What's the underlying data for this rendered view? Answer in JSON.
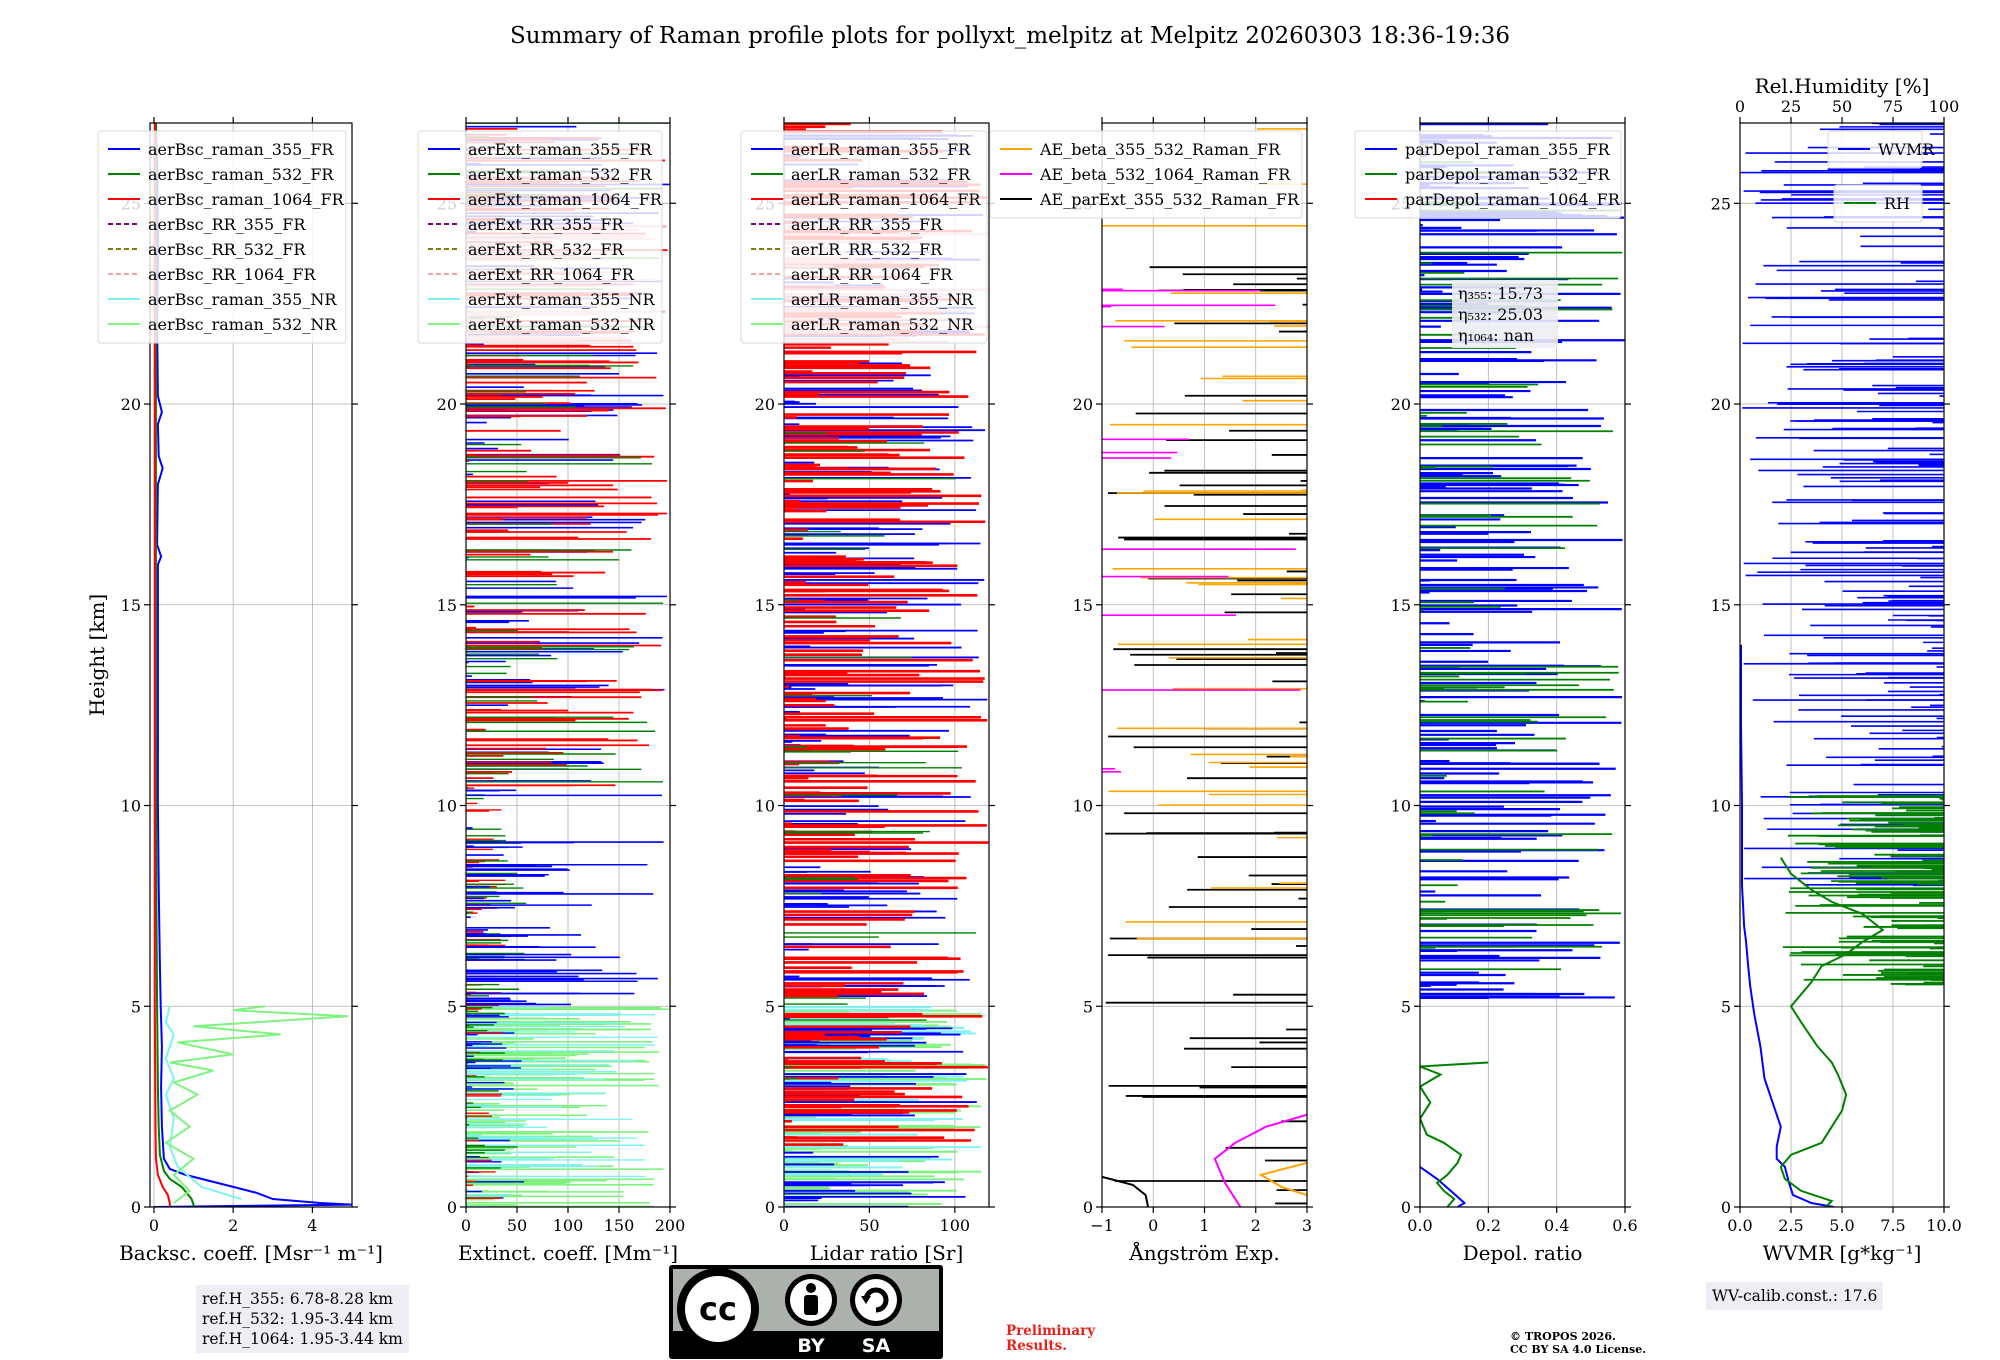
{
  "title": "Summary of Raman profile plots for pollyxt_melpitz at Melpitz 20260303 18:36-19:36",
  "colors": {
    "blue": "#0000ff",
    "green": "#008000",
    "red": "#ff0000",
    "purple": "#800080",
    "olive": "#808000",
    "pink": "#f4a6a6",
    "cyan": "#7ff3f3",
    "lightgreen": "#7ff27f",
    "orange": "#ffa500",
    "magenta": "#ff00ff",
    "black": "#000000"
  },
  "y_axis": {
    "label": "Height [km]",
    "ylim": [
      0,
      27
    ],
    "ticks": [
      0,
      5,
      10,
      15,
      20,
      25
    ]
  },
  "chart_data": [
    {
      "id": "backscatter",
      "type": "line",
      "xlabel": "Backsc. coeff. [Msr⁻¹ m⁻¹]",
      "xlim": [
        -0.1,
        5
      ],
      "xticks": [
        0,
        2,
        4
      ],
      "xtick_labels": [
        "0",
        "2",
        "4"
      ],
      "legend_loc": "upper-left",
      "series": [
        {
          "name": "aerBsc_raman_355_FR",
          "color": "#0000ff",
          "dash": "solid",
          "points": [
            [
              0,
              0
            ],
            [
              5,
              0.06
            ],
            [
              4.2,
              0.1
            ],
            [
              3.0,
              0.2
            ],
            [
              2.6,
              0.35
            ],
            [
              2.0,
              0.5
            ],
            [
              1.4,
              0.65
            ],
            [
              0.8,
              0.8
            ],
            [
              0.4,
              0.95
            ],
            [
              0.25,
              1.2
            ],
            [
              0.2,
              2.0
            ],
            [
              0.18,
              3.0
            ],
            [
              0.2,
              4.0
            ],
            [
              0.17,
              5.0
            ],
            [
              0.15,
              6.0
            ],
            [
              0.12,
              8.0
            ],
            [
              0.1,
              10.0
            ],
            [
              0.1,
              12.0
            ],
            [
              0.1,
              14.0
            ],
            [
              0.1,
              16.0
            ],
            [
              0.18,
              16.2
            ],
            [
              0.08,
              16.5
            ],
            [
              0.1,
              18.0
            ],
            [
              0.22,
              18.4
            ],
            [
              0.12,
              18.7
            ],
            [
              0.1,
              19.5
            ],
            [
              0.2,
              19.8
            ],
            [
              0.1,
              20.2
            ],
            [
              0.08,
              22.0
            ],
            [
              0.1,
              24.0
            ],
            [
              0.08,
              26.0
            ],
            [
              0.05,
              27
            ]
          ]
        },
        {
          "name": "aerBsc_raman_532_FR",
          "color": "#008000",
          "dash": "solid",
          "points": [
            [
              1.0,
              0
            ],
            [
              1.0,
              0.05
            ],
            [
              0.95,
              0.2
            ],
            [
              0.7,
              0.5
            ],
            [
              0.4,
              0.7
            ],
            [
              0.25,
              0.9
            ],
            [
              0.15,
              1.3
            ],
            [
              0.12,
              2.0
            ],
            [
              0.1,
              3.0
            ],
            [
              0.08,
              5.0
            ],
            [
              0.06,
              8.0
            ],
            [
              0.05,
              12.0
            ],
            [
              0.05,
              27
            ]
          ]
        },
        {
          "name": "aerBsc_raman_1064_FR",
          "color": "#ff0000",
          "dash": "solid",
          "points": [
            [
              0.4,
              0
            ],
            [
              0.4,
              0.1
            ],
            [
              0.35,
              0.3
            ],
            [
              0.22,
              0.5
            ],
            [
              0.1,
              0.8
            ],
            [
              0.05,
              1.2
            ],
            [
              0.04,
              2.0
            ],
            [
              0.02,
              5.0
            ],
            [
              0.02,
              27
            ]
          ]
        },
        {
          "name": "aerBsc_RR_355_FR",
          "color": "#800080",
          "dash": "dashed",
          "points": []
        },
        {
          "name": "aerBsc_RR_532_FR",
          "color": "#808000",
          "dash": "dashed",
          "points": []
        },
        {
          "name": "aerBsc_RR_1064_FR",
          "color": "#f4a6a6",
          "dash": "dashed",
          "points": []
        },
        {
          "name": "aerBsc_raman_355_NR",
          "color": "#7ff3f3",
          "dash": "solid",
          "points": [
            [
              2.2,
              0.2
            ],
            [
              1.2,
              0.5
            ],
            [
              0.6,
              1.0
            ],
            [
              0.4,
              1.5
            ],
            [
              0.5,
              2.2
            ],
            [
              0.3,
              2.8
            ],
            [
              0.5,
              3.2
            ],
            [
              0.3,
              3.7
            ],
            [
              0.5,
              4.3
            ],
            [
              0.3,
              4.6
            ],
            [
              0.4,
              5.0
            ]
          ]
        },
        {
          "name": "aerBsc_raman_532_NR",
          "color": "#7ff27f",
          "dash": "solid",
          "points": [
            [
              0.5,
              0.1
            ],
            [
              0.9,
              0.4
            ],
            [
              0.5,
              0.8
            ],
            [
              1.0,
              1.2
            ],
            [
              0.3,
              1.6
            ],
            [
              0.9,
              2.0
            ],
            [
              0.4,
              2.4
            ],
            [
              1.1,
              2.8
            ],
            [
              0.5,
              3.1
            ],
            [
              1.5,
              3.4
            ],
            [
              0.4,
              3.6
            ],
            [
              2.0,
              3.8
            ],
            [
              0.6,
              4.1
            ],
            [
              3.2,
              4.3
            ],
            [
              1.0,
              4.5
            ],
            [
              4.9,
              4.75
            ],
            [
              2.0,
              4.9
            ],
            [
              2.8,
              5.0
            ]
          ]
        }
      ]
    },
    {
      "id": "extinction",
      "type": "line",
      "xlabel": "Extinct. coeff. [Mm⁻¹]",
      "xlim": [
        0,
        200
      ],
      "xticks": [
        0,
        50,
        100,
        150,
        200
      ],
      "xtick_labels": [
        "0",
        "50",
        "100",
        "150",
        "200"
      ],
      "legend_loc": "upper-left",
      "series": [
        {
          "name": "aerExt_raman_355_FR",
          "color": "#0000ff",
          "dash": "solid",
          "points": []
        },
        {
          "name": "aerExt_raman_532_FR",
          "color": "#008000",
          "dash": "solid",
          "points": []
        },
        {
          "name": "aerExt_raman_1064_FR",
          "color": "#ff0000",
          "dash": "solid",
          "points": []
        },
        {
          "name": "aerExt_RR_355_FR",
          "color": "#800080",
          "dash": "dashed",
          "points": []
        },
        {
          "name": "aerExt_RR_532_FR",
          "color": "#808000",
          "dash": "dashed",
          "points": []
        },
        {
          "name": "aerExt_RR_1064_FR",
          "color": "#f4a6a6",
          "dash": "dashed",
          "points": []
        },
        {
          "name": "aerExt_raman_355_NR",
          "color": "#7ff3f3",
          "dash": "solid",
          "points": []
        },
        {
          "name": "aerExt_raman_532_NR",
          "color": "#7ff27f",
          "dash": "solid",
          "points": []
        }
      ]
    },
    {
      "id": "lidar_ratio",
      "type": "line",
      "xlabel": "Lidar ratio [Sr]",
      "xlim": [
        0,
        120
      ],
      "xticks": [
        0,
        50,
        100
      ],
      "xtick_labels": [
        "0",
        "50",
        "100"
      ],
      "legend_loc": "upper-left",
      "series": [
        {
          "name": "aerLR_raman_355_FR",
          "color": "#0000ff",
          "dash": "solid",
          "points": []
        },
        {
          "name": "aerLR_raman_532_FR",
          "color": "#008000",
          "dash": "solid",
          "points": []
        },
        {
          "name": "aerLR_raman_1064_FR",
          "color": "#ff0000",
          "dash": "solid",
          "points": []
        },
        {
          "name": "aerLR_RR_355_FR",
          "color": "#800080",
          "dash": "dashed",
          "points": []
        },
        {
          "name": "aerLR_RR_532_FR",
          "color": "#808000",
          "dash": "dashed",
          "points": []
        },
        {
          "name": "aerLR_RR_1064_FR",
          "color": "#f4a6a6",
          "dash": "dashed",
          "points": []
        },
        {
          "name": "aerLR_raman_355_NR",
          "color": "#7ff3f3",
          "dash": "solid",
          "points": []
        },
        {
          "name": "aerLR_raman_532_NR",
          "color": "#7ff27f",
          "dash": "solid",
          "points": []
        }
      ]
    },
    {
      "id": "angstrom",
      "type": "line",
      "xlabel": "Ångström Exp.",
      "xlim": [
        -1,
        3
      ],
      "xticks": [
        -1,
        0,
        1,
        2,
        3
      ],
      "xtick_labels": [
        "−1",
        "0",
        "1",
        "2",
        "3"
      ],
      "legend_loc": "upper-left",
      "series": [
        {
          "name": "AE_beta_355_532_Raman_FR",
          "color": "#ffa500",
          "dash": "solid",
          "points": [
            [
              3.0,
              0.3
            ],
            [
              2.5,
              0.5
            ],
            [
              2.1,
              0.8
            ],
            [
              2.7,
              1.0
            ],
            [
              3.0,
              1.1
            ]
          ]
        },
        {
          "name": "AE_beta_532_1064_Raman_FR",
          "color": "#ff00ff",
          "dash": "solid",
          "points": [
            [
              1.7,
              0.0
            ],
            [
              1.4,
              0.6
            ],
            [
              1.2,
              1.2
            ],
            [
              1.6,
              1.6
            ],
            [
              2.2,
              2.0
            ],
            [
              3.0,
              2.3
            ]
          ]
        },
        {
          "name": "AE_parExt_355_532_Raman_FR",
          "color": "#000000",
          "dash": "solid",
          "points": [
            [
              -1.0,
              0.75
            ],
            [
              -0.4,
              0.55
            ],
            [
              -0.15,
              0.3
            ],
            [
              -0.1,
              0.0
            ]
          ]
        }
      ]
    },
    {
      "id": "depol",
      "type": "line",
      "xlabel": "Depol. ratio",
      "xlim": [
        0,
        0.6
      ],
      "xticks": [
        0,
        0.2,
        0.4,
        0.6
      ],
      "xtick_labels": [
        "0.0",
        "0.2",
        "0.4",
        "0.6"
      ],
      "legend_loc": "upper-left",
      "series": [
        {
          "name": "parDepol_raman_355_FR",
          "color": "#0000ff",
          "dash": "solid",
          "points": [
            [
              0.0,
              1.0
            ],
            [
              0.05,
              0.7
            ],
            [
              0.09,
              0.4
            ],
            [
              0.13,
              0.1
            ],
            [
              0.11,
              0.0
            ]
          ]
        },
        {
          "name": "parDepol_raman_532_FR",
          "color": "#008000",
          "dash": "solid",
          "points": [
            [
              0.08,
              0.0
            ],
            [
              0.1,
              0.2
            ],
            [
              0.07,
              0.4
            ],
            [
              0.05,
              0.6
            ],
            [
              0.08,
              0.8
            ],
            [
              0.11,
              1.1
            ],
            [
              0.12,
              1.3
            ],
            [
              0.07,
              1.6
            ],
            [
              0.02,
              1.8
            ],
            [
              0.0,
              2.2
            ],
            [
              0.03,
              2.6
            ],
            [
              0.0,
              3.0
            ],
            [
              0.06,
              3.3
            ],
            [
              0.0,
              3.5
            ],
            [
              0.2,
              3.6
            ]
          ]
        },
        {
          "name": "parDepol_raman_1064_FR",
          "color": "#ff0000",
          "dash": "solid",
          "points": []
        }
      ],
      "annotations": {
        "eta355": "η₃₅₅: 15.73",
        "eta532": "η₅₃₂: 25.03",
        "eta1064": "η₁₀₆₄: nan"
      }
    },
    {
      "id": "wvmr",
      "type": "line",
      "xlabel": "WVMR [g*kg⁻¹]",
      "xlim": [
        0,
        10
      ],
      "xticks": [
        0,
        2.5,
        5,
        7.5,
        10
      ],
      "xtick_labels": [
        "0.0",
        "2.5",
        "5.0",
        "7.5",
        "10.0"
      ],
      "top_axis": {
        "label": "Rel.Humidity [%]",
        "xlim": [
          0,
          100
        ],
        "ticks": [
          0,
          25,
          50,
          75,
          100
        ],
        "tick_labels": [
          "0",
          "25",
          "50",
          "75",
          "100"
        ]
      },
      "series": [
        {
          "name": "WVMR",
          "color": "#0000ff",
          "dash": "solid",
          "axis": "bottom",
          "points": [
            [
              4.6,
              0.0
            ],
            [
              3.5,
              0.1
            ],
            [
              2.6,
              0.3
            ],
            [
              2.4,
              0.6
            ],
            [
              2.2,
              1.0
            ],
            [
              1.8,
              1.2
            ],
            [
              1.8,
              1.5
            ],
            [
              2.0,
              2.0
            ],
            [
              1.6,
              2.6
            ],
            [
              1.2,
              3.2
            ],
            [
              1.0,
              4.0
            ],
            [
              0.7,
              4.8
            ],
            [
              0.5,
              5.5
            ],
            [
              0.4,
              6.0
            ],
            [
              0.3,
              6.6
            ],
            [
              0.2,
              7.0
            ],
            [
              0.15,
              7.5
            ],
            [
              0.1,
              8.0
            ],
            [
              0.1,
              10.0
            ],
            [
              0.05,
              12.0
            ],
            [
              0.05,
              14.0
            ]
          ]
        },
        {
          "name": "RH",
          "color": "#008000",
          "dash": "solid",
          "axis": "top",
          "points": [
            [
              42,
              0.0
            ],
            [
              45,
              0.15
            ],
            [
              30,
              0.4
            ],
            [
              22,
              0.7
            ],
            [
              20,
              1.0
            ],
            [
              25,
              1.3
            ],
            [
              40,
              1.6
            ],
            [
              45,
              2.0
            ],
            [
              50,
              2.4
            ],
            [
              52,
              2.8
            ],
            [
              48,
              3.3
            ],
            [
              45,
              3.6
            ],
            [
              38,
              4.0
            ],
            [
              30,
              4.6
            ],
            [
              25,
              5.0
            ],
            [
              35,
              5.6
            ],
            [
              40,
              6.0
            ],
            [
              52,
              6.3
            ],
            [
              60,
              6.6
            ],
            [
              70,
              6.9
            ],
            [
              60,
              7.3
            ],
            [
              45,
              7.6
            ],
            [
              35,
              7.9
            ],
            [
              25,
              8.3
            ],
            [
              20,
              8.7
            ]
          ]
        }
      ]
    }
  ],
  "info_boxes": {
    "ref_lines": [
      "ref.H_355: 6.78-8.28 km",
      "ref.H_532: 1.95-3.44 km",
      "ref.H_1064: 1.95-3.44 km"
    ],
    "wv_calib": "WV-calib.const.: 17.6"
  },
  "license": {
    "cc": "cc",
    "by": "BY",
    "sa": "SA"
  },
  "preliminary": [
    "Preliminary",
    "Results."
  ],
  "copyright": [
    "© TROPOS 2026.",
    "CC BY SA 4.0 License."
  ]
}
